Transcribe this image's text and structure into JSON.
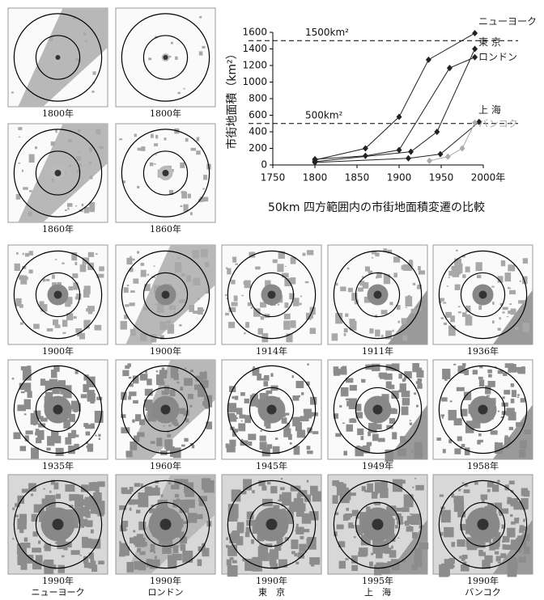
{
  "chart_data": {
    "type": "line",
    "title": "50km 四方範囲内の市街地面積変遷の比較",
    "y_label": "市街地面積（km²）",
    "xlim": [
      1750,
      2000
    ],
    "xticks": [
      1750,
      1800,
      1850,
      1900,
      1950,
      {
        "value": 2000,
        "label": "2000年"
      }
    ],
    "ylim": [
      0,
      1600
    ],
    "yticks": [
      0,
      200,
      400,
      600,
      800,
      1000,
      1200,
      1400,
      1600
    ],
    "reference_lines": [
      {
        "label": "1500km²",
        "value": 1500
      },
      {
        "label": "500km²",
        "value": 500
      }
    ],
    "series": [
      {
        "name": "ニューヨーク",
        "color": "#222222",
        "x": [
          1800,
          1860,
          1900,
          1935,
          1990
        ],
        "values": [
          60,
          200,
          580,
          1270,
          1590
        ]
      },
      {
        "name": "東 京",
        "color": "#222222",
        "x": [
          1800,
          1914,
          1945,
          1990
        ],
        "values": [
          40,
          160,
          400,
          1400
        ]
      },
      {
        "name": "ロンドン",
        "color": "#222222",
        "x": [
          1800,
          1860,
          1900,
          1960,
          1990
        ],
        "values": [
          70,
          110,
          180,
          1170,
          1300
        ]
      },
      {
        "name": "上 海",
        "color": "#222222",
        "x": [
          1800,
          1911,
          1949,
          1995
        ],
        "values": [
          30,
          80,
          130,
          520
        ]
      },
      {
        "name": "バンコク",
        "color": "#aaaaaa",
        "x": [
          1936,
          1958,
          1975,
          1990
        ],
        "values": [
          50,
          100,
          200,
          510
        ]
      }
    ]
  },
  "maps": [
    {
      "year": "1800年"
    },
    {
      "year": "1800年"
    },
    {
      "year": "1860年"
    },
    {
      "year": "1860年"
    },
    {
      "year": "1900年"
    },
    {
      "year": "1900年"
    },
    {
      "year": "1914年"
    },
    {
      "year": "1911年"
    },
    {
      "year": "1936年"
    },
    {
      "year": "1935年"
    },
    {
      "year": "1960年"
    },
    {
      "year": "1945年"
    },
    {
      "year": "1949年"
    },
    {
      "year": "1958年"
    },
    {
      "year": "1990年",
      "city": "ニューヨーク"
    },
    {
      "year": "1990年",
      "city": "ロンドン"
    },
    {
      "year": "1990年",
      "city": "東　京"
    },
    {
      "year": "1995年",
      "city": "上　海"
    },
    {
      "year": "1990年",
      "city": "バンコク"
    }
  ]
}
